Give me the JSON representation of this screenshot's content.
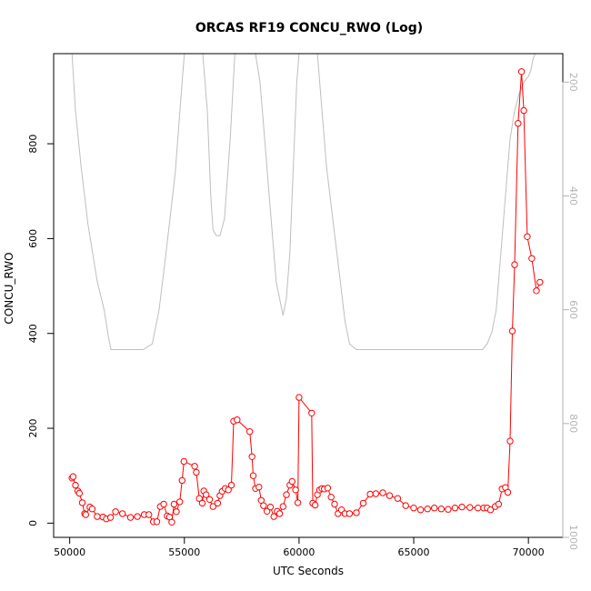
{
  "chart_data": {
    "type": "line",
    "title": "ORCAS RF19 CONCU_RWO (Log)",
    "xlabel": "UTC Seconds",
    "ylabel": "CONCU_RWO",
    "xlim": [
      49300,
      71500
    ],
    "ylim": [
      -30,
      990
    ],
    "y2lim": [
      1000,
      150
    ],
    "y2_reversed": true,
    "grid": false,
    "legend": "none",
    "x_ticks": [
      50000,
      55000,
      60000,
      65000,
      70000
    ],
    "y_ticks": [
      0,
      200,
      400,
      600,
      800
    ],
    "y2_ticks": [
      200,
      400,
      600,
      800,
      1000
    ],
    "colors": {
      "primary": "#ff0000",
      "secondary": "#bebebe",
      "frame": "#000000",
      "secondary_ticks": "#b3b3b3"
    },
    "series": [
      {
        "role": "primary",
        "axis": "left",
        "marker": "open-circle",
        "x": [
          50100,
          50150,
          50250,
          50350,
          50420,
          50550,
          50650,
          50700,
          50880,
          50980,
          51200,
          51450,
          51600,
          51780,
          52000,
          52300,
          52650,
          52950,
          53250,
          53450,
          53650,
          53800,
          53950,
          54100,
          54250,
          54350,
          54450,
          54550,
          54650,
          54800,
          54900,
          54980,
          55450,
          55520,
          55650,
          55780,
          55850,
          55950,
          56100,
          56250,
          56450,
          56550,
          56650,
          56780,
          56920,
          57050,
          57150,
          57300,
          57850,
          57950,
          58000,
          58100,
          58250,
          58350,
          58450,
          58600,
          58750,
          58900,
          59050,
          59150,
          59300,
          59450,
          59600,
          59700,
          59850,
          59950,
          60000,
          60550,
          60600,
          60700,
          60800,
          60900,
          61000,
          61100,
          61250,
          61400,
          61550,
          61700,
          61850,
          62000,
          62200,
          62500,
          62800,
          63100,
          63350,
          63650,
          63950,
          64300,
          64650,
          65000,
          65300,
          65600,
          65900,
          66200,
          66500,
          66800,
          67100,
          67450,
          67800,
          68050,
          68200,
          68350,
          68550,
          68700,
          68850,
          69000,
          69100,
          69200,
          69300,
          69400,
          69550,
          69700,
          69800,
          69950,
          70150,
          70350,
          70500
        ],
        "y": [
          95,
          98,
          80,
          68,
          63,
          43,
          20,
          18,
          34,
          30,
          14,
          13,
          9,
          12,
          24,
          20,
          12,
          14,
          18,
          18,
          3,
          3,
          35,
          40,
          15,
          13,
          2,
          40,
          24,
          45,
          90,
          130,
          120,
          107,
          52,
          42,
          68,
          60,
          50,
          35,
          42,
          58,
          67,
          73,
          70,
          80,
          215,
          218,
          193,
          140,
          100,
          73,
          76,
          48,
          37,
          25,
          34,
          14,
          25,
          20,
          35,
          60,
          80,
          88,
          70,
          43,
          265,
          232,
          42,
          38,
          60,
          70,
          73,
          72,
          74,
          55,
          40,
          20,
          28,
          20,
          20,
          22,
          42,
          61,
          62,
          64,
          58,
          52,
          37,
          32,
          28,
          30,
          32,
          30,
          29,
          32,
          34,
          33,
          32,
          32,
          32,
          28,
          35,
          40,
          72,
          75,
          65,
          173,
          405,
          545,
          843,
          952,
          870,
          604,
          558,
          490,
          508
        ]
      },
      {
        "role": "secondary",
        "axis": "right",
        "marker": "none",
        "x": [
          50100,
          50250,
          50500,
          50800,
          51200,
          51500,
          51700,
          51800,
          52500,
          53200,
          53600,
          53900,
          54200,
          54600,
          54900,
          55000,
          55300,
          55450,
          55600,
          55800,
          56000,
          56050,
          56150,
          56250,
          56400,
          56550,
          56750,
          57000,
          57200,
          57300,
          57500,
          57700,
          57900,
          58100,
          58300,
          58500,
          58700,
          58900,
          59000,
          59100,
          59200,
          59300,
          59450,
          59600,
          59700,
          59900,
          60000,
          60300,
          60600,
          60800,
          61000,
          61200,
          61500,
          61800,
          62000,
          62200,
          62500,
          63000,
          64000,
          65000,
          66000,
          67000,
          68000,
          68200,
          68400,
          68600,
          68800,
          69000,
          69200,
          69400,
          69600,
          69800,
          70000,
          70100,
          70200,
          70300
        ],
        "y": [
          150,
          250,
          350,
          450,
          550,
          600,
          650,
          670,
          670,
          670,
          660,
          600,
          500,
          360,
          200,
          150,
          150,
          150,
          150,
          150,
          250,
          300,
          400,
          460,
          470,
          470,
          440,
          300,
          150,
          150,
          150,
          150,
          150,
          150,
          200,
          300,
          400,
          500,
          550,
          570,
          590,
          610,
          580,
          500,
          400,
          200,
          150,
          150,
          150,
          150,
          250,
          350,
          450,
          550,
          620,
          660,
          670,
          670,
          670,
          670,
          670,
          670,
          670,
          660,
          640,
          600,
          500,
          400,
          300,
          250,
          220,
          200,
          190,
          180,
          160,
          150
        ]
      }
    ]
  }
}
